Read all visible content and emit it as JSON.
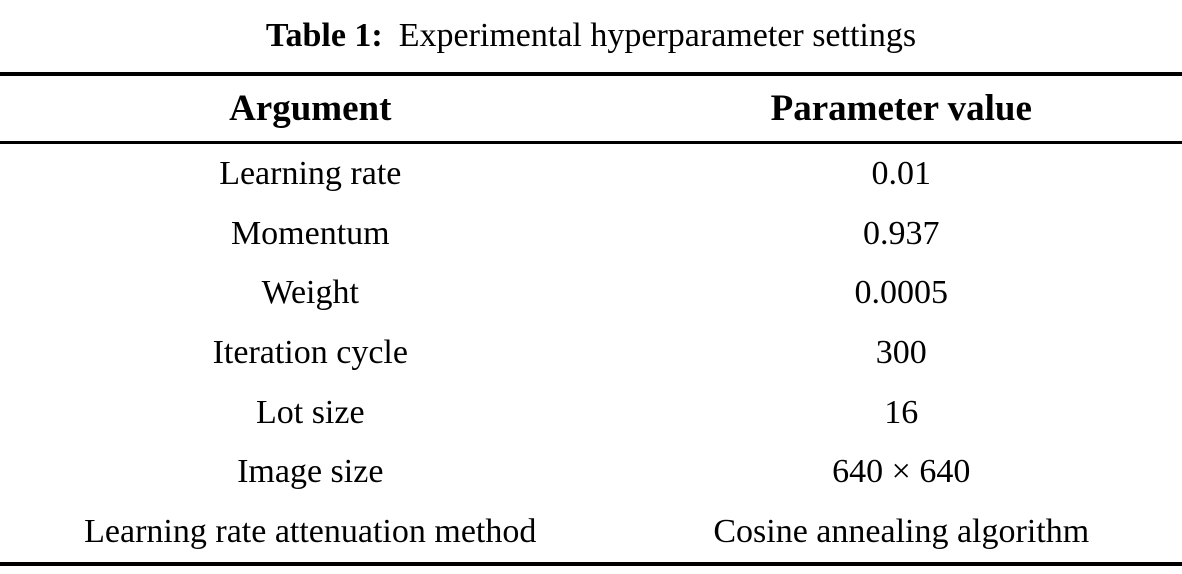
{
  "table": {
    "caption_label": "Table 1:",
    "caption_text": "Experimental hyperparameter settings",
    "columns": [
      "Argument",
      "Parameter value"
    ],
    "rows": [
      {
        "argument": "Learning rate",
        "value": "0.01"
      },
      {
        "argument": "Momentum",
        "value": "0.937"
      },
      {
        "argument": "Weight",
        "value": "0.0005"
      },
      {
        "argument": "Iteration cycle",
        "value": "300"
      },
      {
        "argument": "Lot size",
        "value": "16"
      },
      {
        "argument": "Image size",
        "value": "640 × 640"
      },
      {
        "argument": "Learning rate attenuation method",
        "value": "Cosine annealing algorithm"
      }
    ]
  }
}
